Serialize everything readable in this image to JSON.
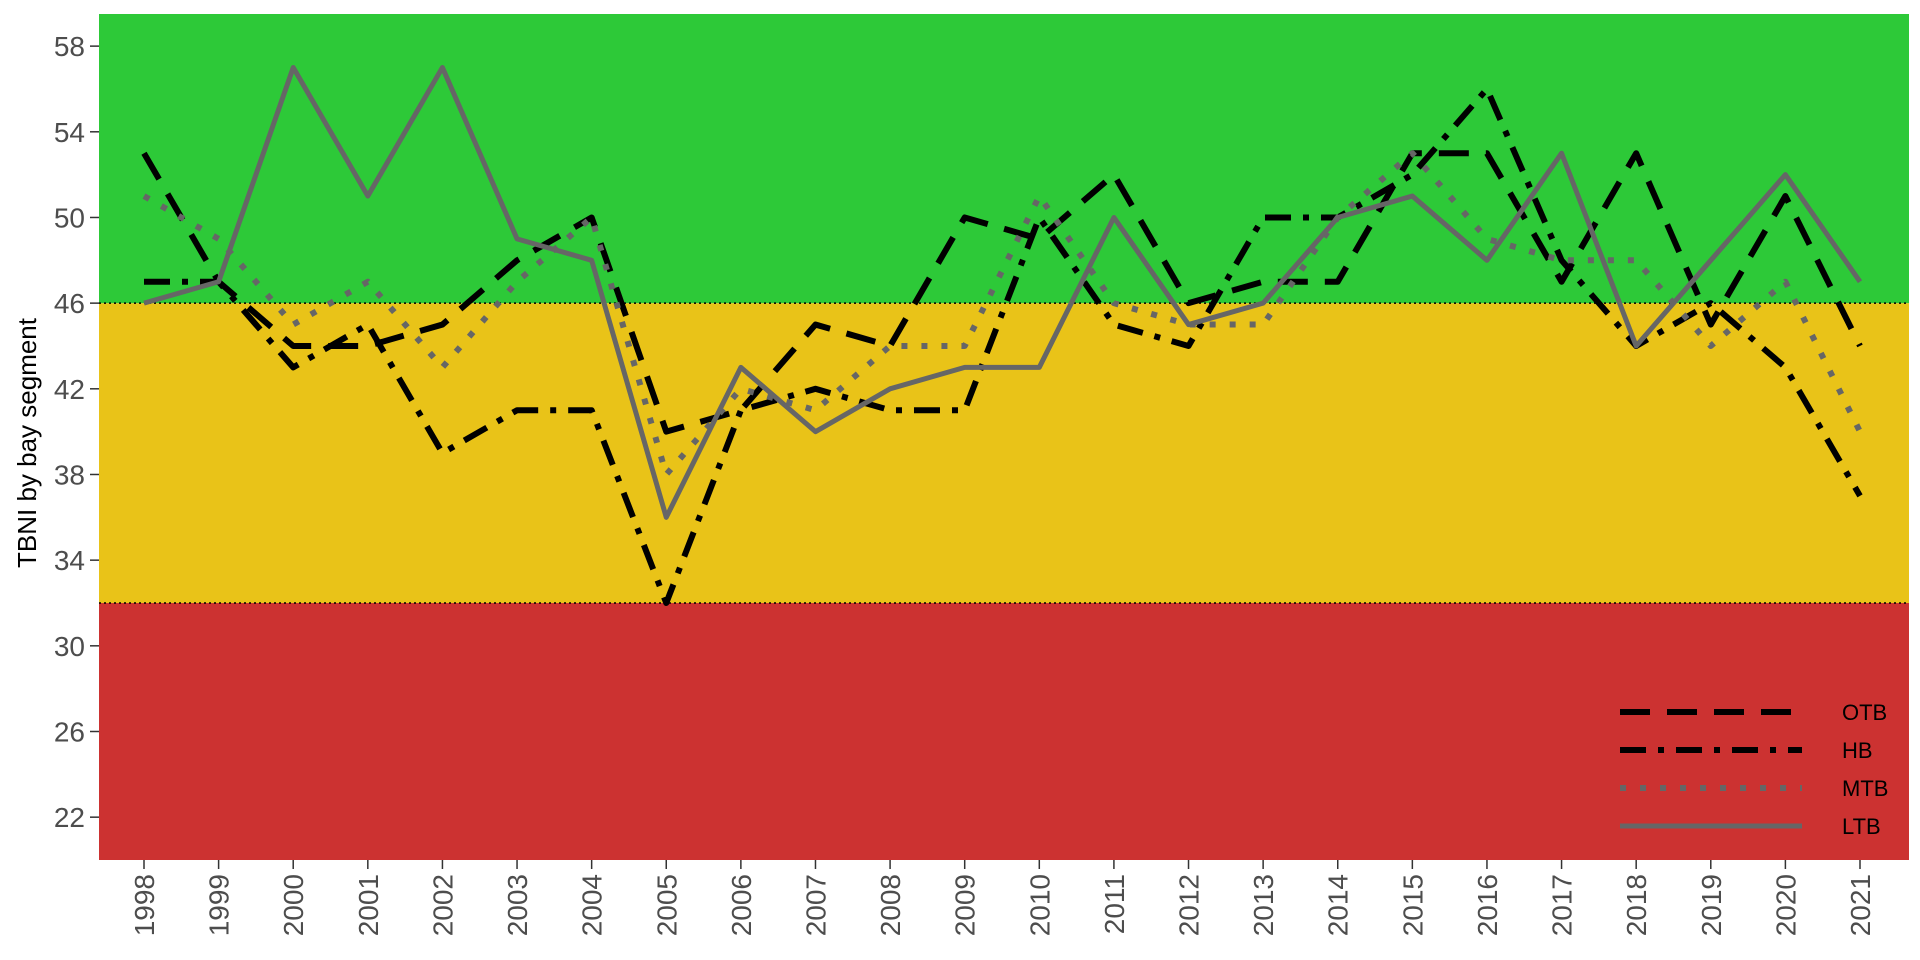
{
  "chart_data": {
    "type": "line",
    "title": "",
    "xlabel": "",
    "ylabel": "TBNI by bay segment",
    "ylim": [
      20,
      59.5
    ],
    "yticks": [
      22,
      26,
      30,
      34,
      38,
      42,
      46,
      50,
      54,
      58
    ],
    "x": [
      "1998",
      "1999",
      "2000",
      "2001",
      "2002",
      "2003",
      "2004",
      "2005",
      "2006",
      "2007",
      "2008",
      "2009",
      "2010",
      "2011",
      "2012",
      "2013",
      "2014",
      "2015",
      "2016",
      "2017",
      "2018",
      "2019",
      "2020",
      "2021"
    ],
    "bands": [
      {
        "from": 20,
        "to": 32,
        "color": "#CC3231"
      },
      {
        "from": 32,
        "to": 46,
        "color": "#E9C318"
      },
      {
        "from": 46,
        "to": 59.5,
        "color": "#2DC938"
      }
    ],
    "thresholds": [
      32,
      46
    ],
    "series": [
      {
        "name": "OTB",
        "style": "dashed",
        "color": "#000000",
        "values": [
          53,
          47,
          44,
          44,
          45,
          48,
          50,
          40,
          41,
          45,
          44,
          50,
          49,
          52,
          46,
          47,
          47,
          53,
          53,
          47,
          53,
          45,
          51,
          44
        ]
      },
      {
        "name": "HB",
        "style": "dotdash",
        "color": "#000000",
        "values": [
          47,
          47,
          43,
          45,
          39,
          41,
          41,
          32,
          41,
          42,
          41,
          41,
          50,
          45,
          44,
          50,
          50,
          52,
          56,
          48,
          44,
          46,
          43,
          37
        ]
      },
      {
        "name": "MTB",
        "style": "dotted",
        "color": "#666666",
        "values": [
          51,
          49,
          45,
          47,
          43,
          47,
          50,
          38,
          42,
          41,
          44,
          44,
          51,
          46,
          45,
          45,
          50,
          53,
          49,
          48,
          48,
          44,
          47,
          40
        ]
      },
      {
        "name": "LTB",
        "style": "solid",
        "color": "#666666",
        "values": [
          46,
          47,
          57,
          51,
          57,
          49,
          48,
          36,
          43,
          40,
          42,
          43,
          43,
          50,
          45,
          46,
          50,
          51,
          48,
          53,
          44,
          48,
          52,
          47
        ]
      }
    ],
    "legend": {
      "position": "bottom-right"
    },
    "grid": false
  }
}
